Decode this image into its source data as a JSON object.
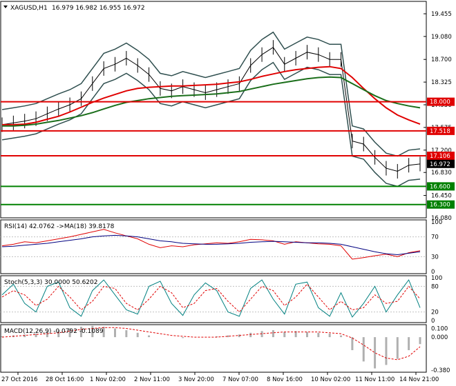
{
  "header": {
    "symbol": "XAGUSD,H1",
    "ohlc": "16.979 16.982 16.955 16.972"
  },
  "chart_data": [
    {
      "type": "line",
      "panel": "price",
      "y_ticks": [
        "19.455",
        "19.080",
        "18.700",
        "18.325",
        "17.950",
        "17.575",
        "17.200",
        "16.830",
        "16.450",
        "16.080"
      ],
      "ylim": [
        16.08,
        19.455
      ],
      "x_labels": [
        "27 Oct 2016",
        "28 Oct 16:00",
        "1 Nov 02:00",
        "2 Nov 11:00",
        "3 Nov 20:00",
        "7 Nov 07:00",
        "8 Nov 16:00",
        "10 Nov 02:00",
        "11 Nov 11:00",
        "14 Nov 21:00"
      ],
      "levels": [
        {
          "label": "18.000",
          "value": 18.0,
          "color": "#e00000"
        },
        {
          "label": "17.518",
          "value": 17.518,
          "color": "#e00000"
        },
        {
          "label": "17.106",
          "value": 17.106,
          "color": "#e00000"
        },
        {
          "label": "16.600",
          "value": 16.6,
          "color": "#008000"
        },
        {
          "label": "16.300",
          "value": 16.3,
          "color": "#008000"
        }
      ],
      "current_price": {
        "label": "16.972",
        "value": 16.972
      },
      "series": [
        {
          "role": "price",
          "color": "#000000",
          "values": [
            17.62,
            17.65,
            17.68,
            17.72,
            17.8,
            17.88,
            17.95,
            18.05,
            18.3,
            18.55,
            18.62,
            18.72,
            18.6,
            18.45,
            18.22,
            18.18,
            18.25,
            18.2,
            18.15,
            18.2,
            18.25,
            18.3,
            18.6,
            18.78,
            18.9,
            18.62,
            18.72,
            18.82,
            18.78,
            18.7,
            18.7,
            17.35,
            17.3,
            17.08,
            16.9,
            16.85,
            16.95,
            16.97
          ]
        },
        {
          "role": "ma-red",
          "color": "#e00000",
          "values": [
            17.62,
            17.62,
            17.63,
            17.66,
            17.71,
            17.76,
            17.83,
            17.91,
            17.99,
            18.06,
            18.12,
            18.18,
            18.22,
            18.24,
            18.25,
            18.26,
            18.26,
            18.27,
            18.28,
            18.29,
            18.31,
            18.33,
            18.37,
            18.42,
            18.46,
            18.5,
            18.53,
            18.55,
            18.57,
            18.58,
            18.55,
            18.4,
            18.22,
            18.05,
            17.9,
            17.78,
            17.7,
            17.63
          ]
        },
        {
          "role": "ma-green",
          "color": "#1a6e1a",
          "values": [
            17.6,
            17.6,
            17.61,
            17.63,
            17.66,
            17.69,
            17.73,
            17.77,
            17.82,
            17.88,
            17.94,
            17.99,
            18.02,
            18.05,
            18.07,
            18.09,
            18.1,
            18.11,
            18.12,
            18.13,
            18.15,
            18.17,
            18.21,
            18.25,
            18.29,
            18.32,
            18.35,
            18.38,
            18.4,
            18.41,
            18.4,
            18.3,
            18.2,
            18.1,
            18.02,
            17.97,
            17.93,
            17.9
          ]
        }
      ]
    },
    {
      "type": "line",
      "panel": "rsi",
      "label": "RSI(14) 42.0762 ->MA(18) 39.8178",
      "y_ticks": [
        "100",
        "70",
        "30",
        "0"
      ],
      "ylim": [
        0,
        100
      ],
      "series": [
        {
          "color": "#e00000",
          "values": [
            52,
            55,
            60,
            58,
            62,
            66,
            70,
            75,
            80,
            85,
            78,
            72,
            66,
            55,
            48,
            52,
            50,
            54,
            56,
            58,
            57,
            60,
            65,
            64,
            62,
            55,
            60,
            58,
            56,
            55,
            52,
            25,
            28,
            32,
            35,
            30,
            38,
            42
          ]
        },
        {
          "color": "#000080",
          "values": [
            50,
            51,
            53,
            55,
            57,
            60,
            63,
            66,
            70,
            72,
            73,
            72,
            70,
            66,
            62,
            60,
            57,
            56,
            55,
            55,
            56,
            57,
            59,
            60,
            61,
            60,
            59,
            58,
            58,
            57,
            55,
            50,
            45,
            40,
            36,
            34,
            37,
            39.8
          ]
        }
      ]
    },
    {
      "type": "line",
      "panel": "stoch",
      "label": "Stoch(5,3,3) 30.0000 50.6202",
      "y_ticks": [
        "100",
        "80",
        "20",
        "0"
      ],
      "ylim": [
        0,
        100
      ],
      "series": [
        {
          "color": "#008080",
          "values": [
            60,
            85,
            40,
            20,
            80,
            90,
            30,
            10,
            70,
            95,
            60,
            25,
            15,
            80,
            92,
            40,
            12,
            60,
            88,
            70,
            20,
            10,
            75,
            95,
            50,
            15,
            85,
            90,
            30,
            10,
            65,
            8,
            40,
            80,
            20,
            60,
            95,
            30
          ]
        },
        {
          "color": "#e00000",
          "values": [
            55,
            70,
            60,
            35,
            50,
            80,
            55,
            25,
            45,
            80,
            75,
            40,
            25,
            50,
            80,
            65,
            30,
            40,
            70,
            75,
            45,
            20,
            50,
            80,
            70,
            35,
            55,
            85,
            55,
            25,
            45,
            25,
            30,
            60,
            40,
            45,
            80,
            50.6
          ]
        }
      ]
    },
    {
      "type": "bar",
      "panel": "macd",
      "label": "MACD(12,26,9) -0.0792 -0.1089",
      "y_ticks": [
        "0.100",
        "0.000",
        "-0.380"
      ],
      "ylim": [
        -0.38,
        0.12
      ],
      "histogram_color": "#b0b0b0",
      "signal_color": "#e00000",
      "values": [
        0.01,
        0.02,
        0.03,
        0.04,
        0.06,
        0.08,
        0.1,
        0.12,
        0.13,
        0.12,
        0.1,
        0.08,
        0.05,
        0.02,
        0.0,
        0.0,
        -0.01,
        0.0,
        0.0,
        0.01,
        0.02,
        0.03,
        0.05,
        0.07,
        0.08,
        0.06,
        0.07,
        0.06,
        0.05,
        0.04,
        0.02,
        -0.15,
        -0.28,
        -0.36,
        -0.32,
        -0.25,
        -0.15,
        -0.08
      ],
      "signal": [
        0.0,
        0.01,
        0.02,
        0.03,
        0.04,
        0.05,
        0.07,
        0.09,
        0.1,
        0.11,
        0.11,
        0.1,
        0.08,
        0.06,
        0.04,
        0.02,
        0.01,
        0.0,
        0.0,
        0.0,
        0.01,
        0.02,
        0.03,
        0.04,
        0.05,
        0.06,
        0.06,
        0.06,
        0.06,
        0.05,
        0.04,
        -0.01,
        -0.09,
        -0.18,
        -0.24,
        -0.26,
        -0.22,
        -0.11
      ]
    }
  ]
}
